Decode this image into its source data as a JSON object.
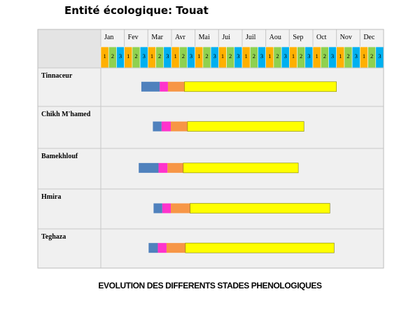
{
  "page_title": "Entité écologique: Touat",
  "bottom_title": "EVOLUTION DES DIFFERENTS STADES PHENOLOGIQUES",
  "chart_data": {
    "type": "gantt",
    "months": [
      "Jan",
      "Fev",
      "Mar",
      "Avr",
      "Mai",
      "Jui",
      "Juil",
      "Aou",
      "Sep",
      "Oct",
      "Nov",
      "Dec"
    ],
    "decades": [
      "1",
      "2",
      "3"
    ],
    "decade_colors": [
      "#ffb000",
      "#8fd14f",
      "#00b0f0"
    ],
    "stage_colors": [
      "#4f81bd",
      "#ff33cc",
      "#f79646",
      "#ffff00"
    ],
    "x_unit": "month (fractional, 2.0 = start of Mar)",
    "xlim": [
      0,
      12
    ],
    "rows": [
      {
        "label": "Tinnaceur",
        "segments": [
          [
            1.72,
            2.5
          ],
          [
            2.5,
            2.85
          ],
          [
            2.85,
            3.55
          ],
          [
            3.55,
            10.0
          ]
        ]
      },
      {
        "label": "Chikh M'hamed",
        "segments": [
          [
            2.21,
            2.58
          ],
          [
            2.58,
            2.97
          ],
          [
            2.97,
            3.68
          ],
          [
            3.68,
            8.62
          ]
        ]
      },
      {
        "label": "Bamekhlouf",
        "segments": [
          [
            1.61,
            2.45
          ],
          [
            2.45,
            2.83
          ],
          [
            2.83,
            3.5
          ],
          [
            3.5,
            8.38
          ]
        ]
      },
      {
        "label": "Hmira",
        "segments": [
          [
            2.24,
            2.61
          ],
          [
            2.61,
            2.97
          ],
          [
            2.97,
            3.79
          ],
          [
            3.79,
            9.72
          ]
        ]
      },
      {
        "label": "Teghaza",
        "segments": [
          [
            2.03,
            2.42
          ],
          [
            2.42,
            2.79
          ],
          [
            2.79,
            3.59
          ],
          [
            3.59,
            9.9
          ]
        ]
      }
    ]
  }
}
